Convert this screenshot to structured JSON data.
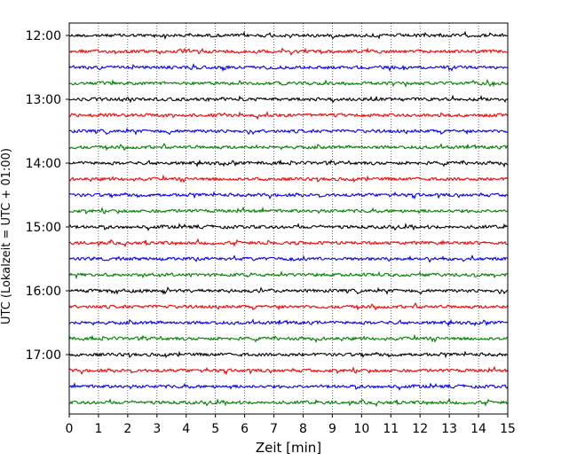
{
  "chart_data": {
    "type": "line",
    "title": "",
    "xlabel": "Zeit  [min]",
    "ylabel": "UTC (Lokalzeit = UTC + 01:00)",
    "xlim": [
      0,
      15
    ],
    "x_ticks": [
      "0",
      "1",
      "2",
      "3",
      "4",
      "5",
      "6",
      "7",
      "8",
      "9",
      "10",
      "11",
      "12",
      "13",
      "14",
      "15"
    ],
    "y_ticks": [
      "12:00",
      "13:00",
      "14:00",
      "15:00",
      "16:00",
      "17:00"
    ],
    "trace_start_minutes_after_12": 0,
    "trace_interval_minutes": 15,
    "trace_count": 24,
    "trace_colors": [
      "#000000",
      "#ff0000",
      "#0000ff",
      "#008000"
    ],
    "grid": "vertical dotted at every minute"
  }
}
